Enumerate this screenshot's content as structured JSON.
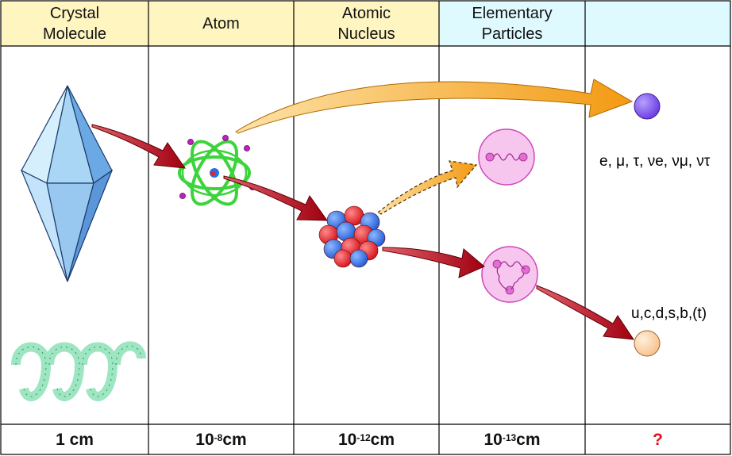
{
  "columns": [
    {
      "header": "Crystal\nMolecule",
      "header_bg": "#fff5c0",
      "size_base": "1 cm",
      "size_exp": ""
    },
    {
      "header": "Atom",
      "header_bg": "#fff5c0",
      "size_base": "10",
      "size_exp": "-8",
      "size_unit": "cm"
    },
    {
      "header": "Atomic\nNucleus",
      "header_bg": "#fff5c0",
      "size_base": "10",
      "size_exp": "-12",
      "size_unit": "cm"
    },
    {
      "header": "Elementary\nParticles",
      "header_bg": "#dffaff",
      "size_base": "10",
      "size_exp": "-13",
      "size_unit": "cm"
    },
    {
      "header": "",
      "header_bg": "#dffaff",
      "size_base": "?",
      "size_exp": ""
    }
  ],
  "labels": {
    "leptons": "e, μ, τ, ν",
    "leptons_full": "e, μ, τ, νe, νμ, ντ",
    "quarks": "u,c,d,s,b,(t)"
  },
  "colors": {
    "crystal": "#a9d6f5",
    "electron_orbit": "#3bd43b",
    "proton": "#e8202a",
    "neutron": "#2a6fe0",
    "red_arrow": "#b5101a",
    "orange_arrow": "#f5a623",
    "lepton": "#8a5cf0",
    "quark": "#ffd0a0",
    "particle_bubble": "#f7c6ef",
    "question_mark": "#e0101a"
  }
}
